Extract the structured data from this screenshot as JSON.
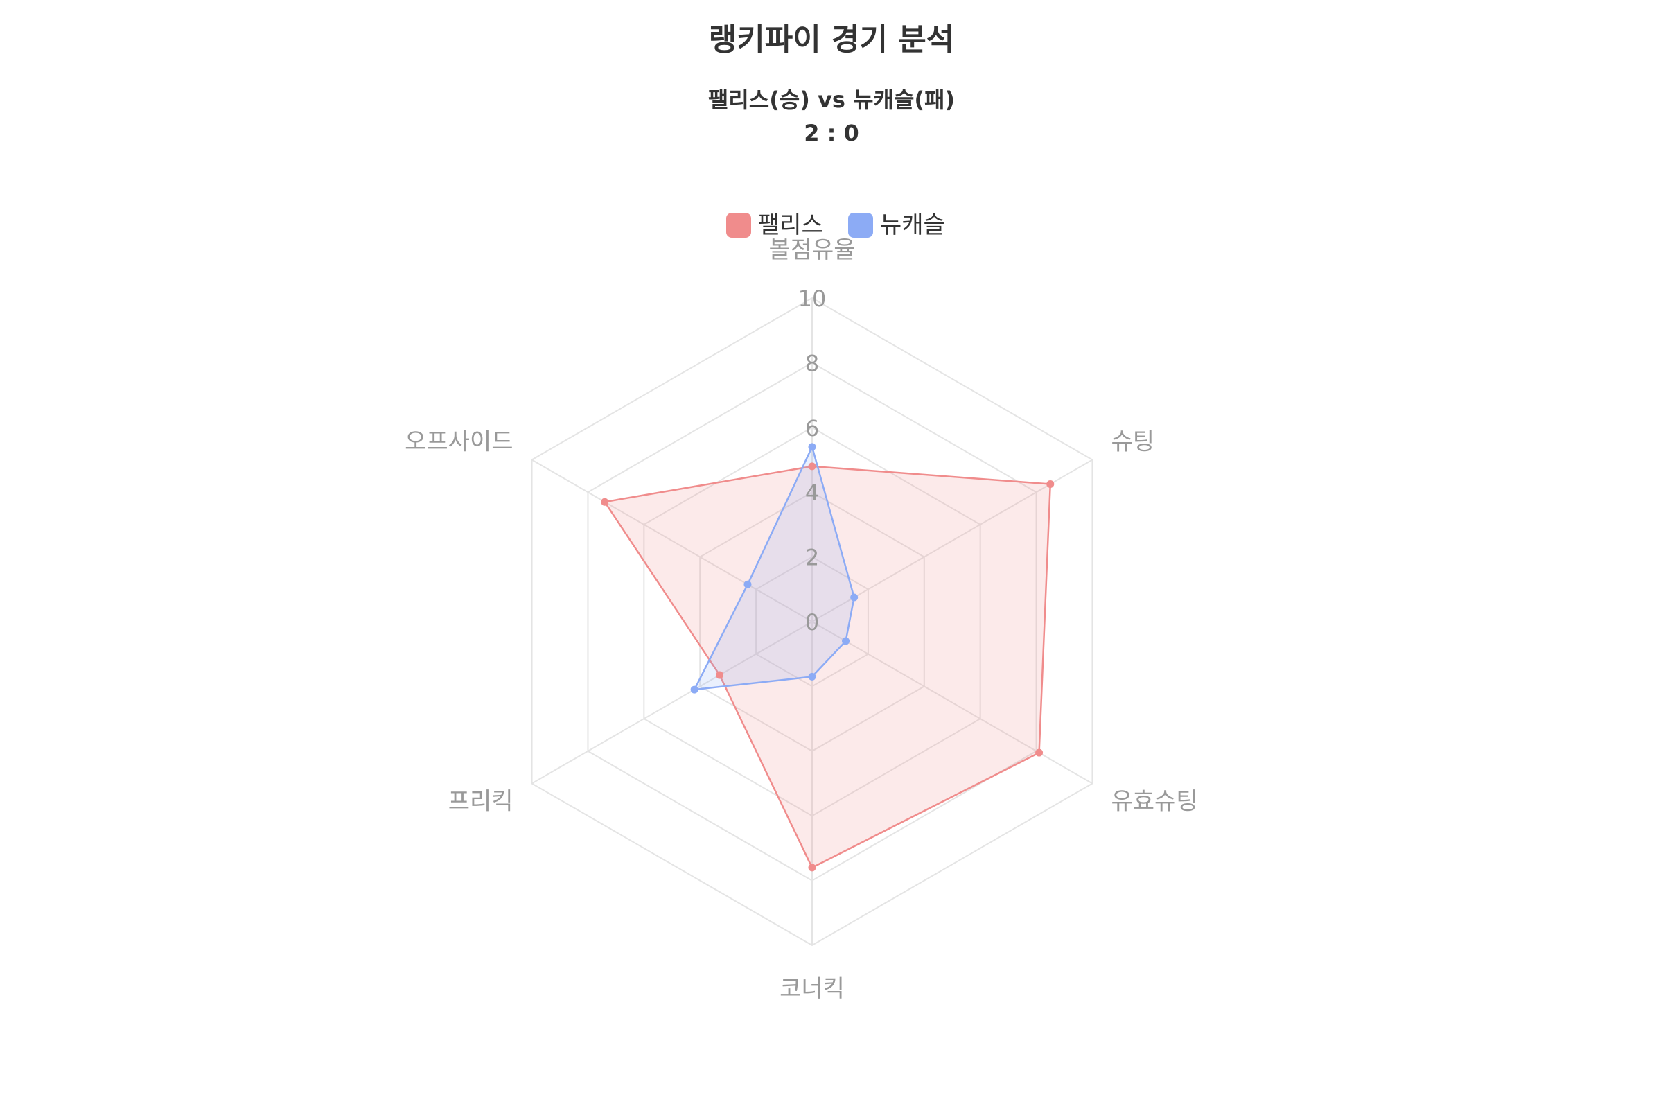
{
  "chart_data": {
    "type": "radar",
    "title": "랭키파이 경기 분석",
    "subtitle_line1": "팰리스(승) vs 뉴캐슬(패)",
    "subtitle_line2": "2 : 0",
    "axes": [
      "볼점유율",
      "슈팅",
      "유효슈팅",
      "코너킥",
      "프리킥",
      "오프사이드"
    ],
    "ticks": [
      "0",
      "2",
      "4",
      "6",
      "8",
      "10"
    ],
    "range": [
      0,
      10
    ],
    "grid": true,
    "legend_position": "top",
    "series": [
      {
        "name": "팰리스",
        "values": [
          4.8,
          8.5,
          8.1,
          7.6,
          3.3,
          7.4
        ],
        "color": "#f08c8c",
        "fill": "rgba(240, 140, 140, 0.18)"
      },
      {
        "name": "뉴캐슬",
        "values": [
          5.4,
          1.5,
          1.2,
          1.7,
          4.2,
          2.3
        ],
        "color": "#8cabf5",
        "fill": "rgba(140, 171, 245, 0.18)"
      }
    ]
  }
}
